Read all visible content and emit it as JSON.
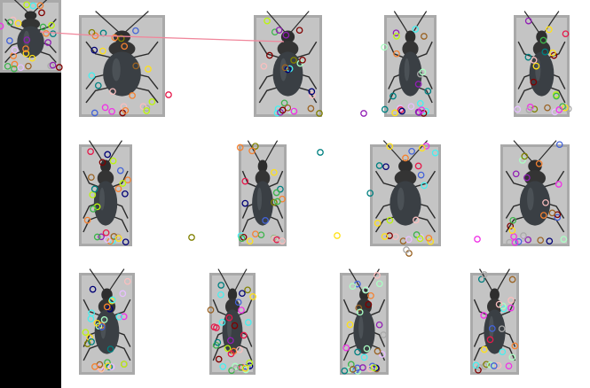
{
  "colors": {
    "background": "#ffffff",
    "left_panel": "#000000",
    "match_line": "#f0869b",
    "keypoints": [
      "#e6194b",
      "#3cb44b",
      "#ffe119",
      "#4363d8",
      "#f58231",
      "#911eb4",
      "#46f0f0",
      "#f032e6",
      "#bcf60c",
      "#fabebe",
      "#008080",
      "#e6beff",
      "#9a6324",
      "#800000",
      "#aaffc3",
      "#808000",
      "#000075",
      "#a9a9a9"
    ]
  },
  "query_image": {
    "label": "beetle-query-thumbnail"
  },
  "gallery": {
    "rows": 3,
    "columns": 4,
    "images": [
      {
        "label": "beetle-1-1"
      },
      {
        "label": "beetle-1-2"
      },
      {
        "label": "beetle-1-3"
      },
      {
        "label": "beetle-1-4"
      },
      {
        "label": "beetle-2-1"
      },
      {
        "label": "beetle-2-2"
      },
      {
        "label": "beetle-2-3"
      },
      {
        "label": "beetle-2-4"
      },
      {
        "label": "beetle-3-1"
      },
      {
        "label": "beetle-3-2"
      },
      {
        "label": "beetle-3-3"
      },
      {
        "label": "beetle-3-4"
      }
    ]
  }
}
